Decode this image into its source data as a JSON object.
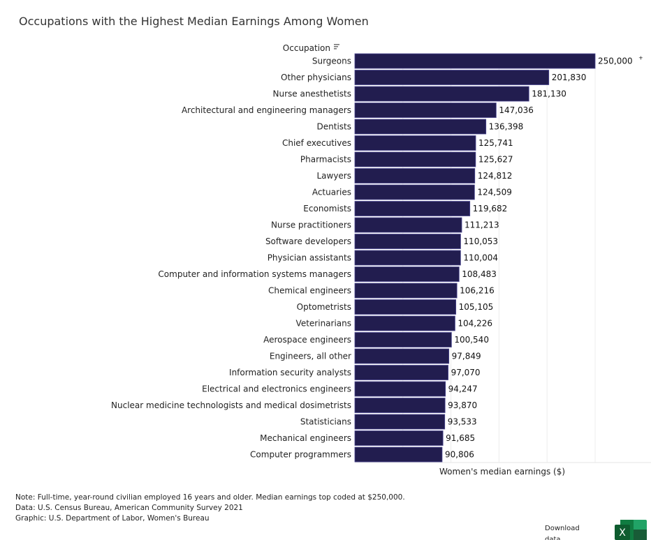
{
  "title": "Occupations with the Highest Median Earnings Among Women",
  "chart_data": {
    "type": "bar",
    "orientation": "horizontal",
    "title": "Occupations with the Highest Median Earnings Among Women",
    "ylabel": "Occupation",
    "xlabel": "Women's median earnings ($)",
    "xlim": [
      0,
      260000
    ],
    "grid": true,
    "bar_color": "#221d4f",
    "categories": [
      "Surgeons",
      "Other physicians",
      "Nurse anesthetists",
      "Architectural and engineering managers",
      "Dentists",
      "Chief executives",
      "Pharmacists",
      "Lawyers",
      "Actuaries",
      "Economists",
      "Nurse practitioners",
      "Software developers",
      "Physician assistants",
      "Computer and information systems managers",
      "Chemical engineers",
      "Optometrists",
      "Veterinarians",
      "Aerospace engineers",
      "Engineers, all other",
      "Information security analysts",
      "Electrical and electronics engineers",
      "Nuclear medicine technologists and medical dosimetrists",
      "Statisticians",
      "Mechanical engineers",
      "Computer programmers"
    ],
    "values": [
      250000,
      201830,
      181130,
      147036,
      136398,
      125741,
      125627,
      124812,
      124509,
      119682,
      111213,
      110053,
      110004,
      108483,
      106216,
      105105,
      104226,
      100540,
      97849,
      97070,
      94247,
      93870,
      93533,
      91685,
      90806
    ],
    "labels": [
      "250,000",
      "201,830",
      "181,130",
      "147,036",
      "136,398",
      "125,741",
      "125,627",
      "124,812",
      "124,509",
      "119,682",
      "111,213",
      "110,053",
      "110,004",
      "108,483",
      "106,216",
      "105,105",
      "104,226",
      "100,540",
      "97,849",
      "97,070",
      "94,247",
      "93,870",
      "93,533",
      "91,685",
      "90,806"
    ],
    "top_code_mark": "+"
  },
  "notes": [
    "Note: Full-time, year-round civilian employed 16 years and older. Median earnings top coded at $250,000.",
    "Data: U.S. Census Bureau, American Community Survey 2021",
    "Graphic: U.S. Department of Labor, Women's Bureau"
  ],
  "download_label": "Download data"
}
